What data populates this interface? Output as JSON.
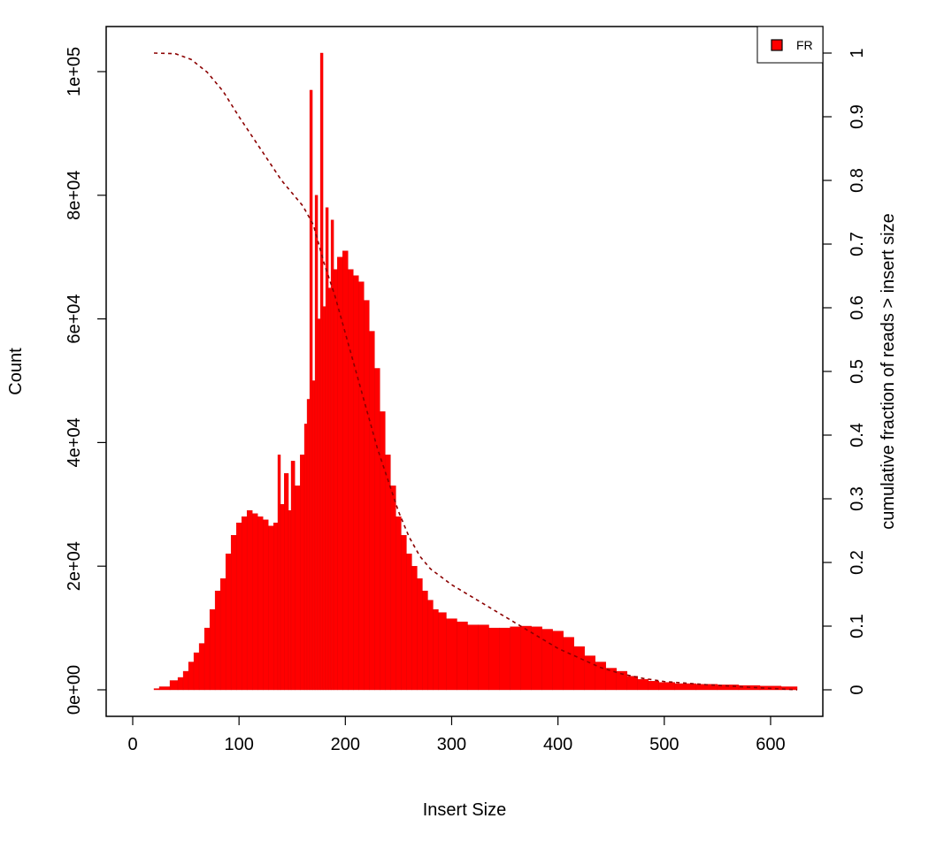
{
  "chart_data": {
    "type": "bar",
    "title": "",
    "xlabel": "Insert Size",
    "ylabel": "Count",
    "y2label": "cumulative fraction of reads > insert size",
    "xlim": [
      0,
      625
    ],
    "ylim": [
      0,
      103000
    ],
    "y2lim": [
      0,
      1
    ],
    "x_ticks": [
      0,
      100,
      200,
      300,
      400,
      500,
      600
    ],
    "x_tick_labels": [
      "0",
      "100",
      "200",
      "300",
      "400",
      "500",
      "600"
    ],
    "y_ticks": [
      0,
      20000,
      40000,
      60000,
      80000,
      100000
    ],
    "y_tick_labels": [
      "0e+00",
      "2e+04",
      "4e+04",
      "6e+04",
      "8e+04",
      "1e+05"
    ],
    "y2_ticks": [
      0,
      0.1,
      0.2,
      0.3,
      0.4,
      0.5,
      0.6,
      0.7,
      0.8,
      0.9,
      1
    ],
    "y2_tick_labels": [
      "0",
      "0.1",
      "0.2",
      "0.3",
      "0.4",
      "0.5",
      "0.6",
      "0.7",
      "0.8",
      "0.9",
      "1"
    ],
    "grid": false,
    "legend_position": "top-right",
    "colors": {
      "bars": "#ff0000",
      "cumulative_line": "#8b0000"
    },
    "series": [
      {
        "name": "FR",
        "x": [
          20,
          30,
          40,
          45,
          50,
          55,
          60,
          65,
          70,
          75,
          80,
          85,
          90,
          95,
          100,
          105,
          110,
          115,
          120,
          125,
          130,
          135,
          138,
          140,
          145,
          148,
          150,
          155,
          160,
          163,
          165,
          168,
          170,
          173,
          175,
          178,
          180,
          183,
          185,
          188,
          190,
          195,
          200,
          205,
          210,
          215,
          220,
          225,
          230,
          235,
          240,
          245,
          250,
          255,
          260,
          265,
          270,
          275,
          280,
          285,
          290,
          300,
          310,
          320,
          330,
          340,
          350,
          360,
          370,
          380,
          390,
          400,
          410,
          420,
          430,
          440,
          450,
          460,
          470,
          480,
          490,
          500,
          520,
          540,
          560,
          580,
          600,
          620
        ],
        "values": [
          200,
          500,
          1500,
          2000,
          3000,
          4500,
          6000,
          7500,
          10000,
          13000,
          16000,
          18000,
          22000,
          25000,
          27000,
          28000,
          29000,
          28500,
          28000,
          27500,
          26500,
          27000,
          38000,
          30000,
          35000,
          29000,
          37000,
          33000,
          38000,
          43000,
          47000,
          97000,
          50000,
          80000,
          60000,
          103000,
          62000,
          78000,
          65000,
          76000,
          68000,
          70000,
          71000,
          68000,
          67000,
          66000,
          63000,
          58000,
          52000,
          45000,
          38000,
          33000,
          28000,
          25000,
          22000,
          20000,
          18000,
          16000,
          14500,
          13000,
          12500,
          11500,
          11000,
          10500,
          10500,
          10000,
          10000,
          10200,
          10300,
          10200,
          9800,
          9500,
          8500,
          7000,
          5500,
          4500,
          3500,
          3000,
          2200,
          1700,
          1400,
          1200,
          1000,
          900,
          800,
          700,
          600,
          500
        ]
      },
      {
        "name": "cumulative fraction",
        "axis": "right",
        "style": "dashed",
        "x": [
          20,
          40,
          55,
          70,
          85,
          100,
          120,
          140,
          160,
          170,
          180,
          190,
          200,
          210,
          220,
          230,
          240,
          250,
          260,
          270,
          280,
          300,
          320,
          340,
          360,
          380,
          400,
          420,
          440,
          460,
          480,
          500,
          540,
          580,
          625
        ],
        "values": [
          1.0,
          0.999,
          0.99,
          0.97,
          0.94,
          0.9,
          0.85,
          0.8,
          0.76,
          0.73,
          0.67,
          0.62,
          0.56,
          0.5,
          0.44,
          0.38,
          0.33,
          0.28,
          0.24,
          0.21,
          0.19,
          0.165,
          0.145,
          0.125,
          0.105,
          0.085,
          0.065,
          0.05,
          0.035,
          0.025,
          0.018,
          0.013,
          0.008,
          0.004,
          0.0
        ]
      }
    ]
  }
}
